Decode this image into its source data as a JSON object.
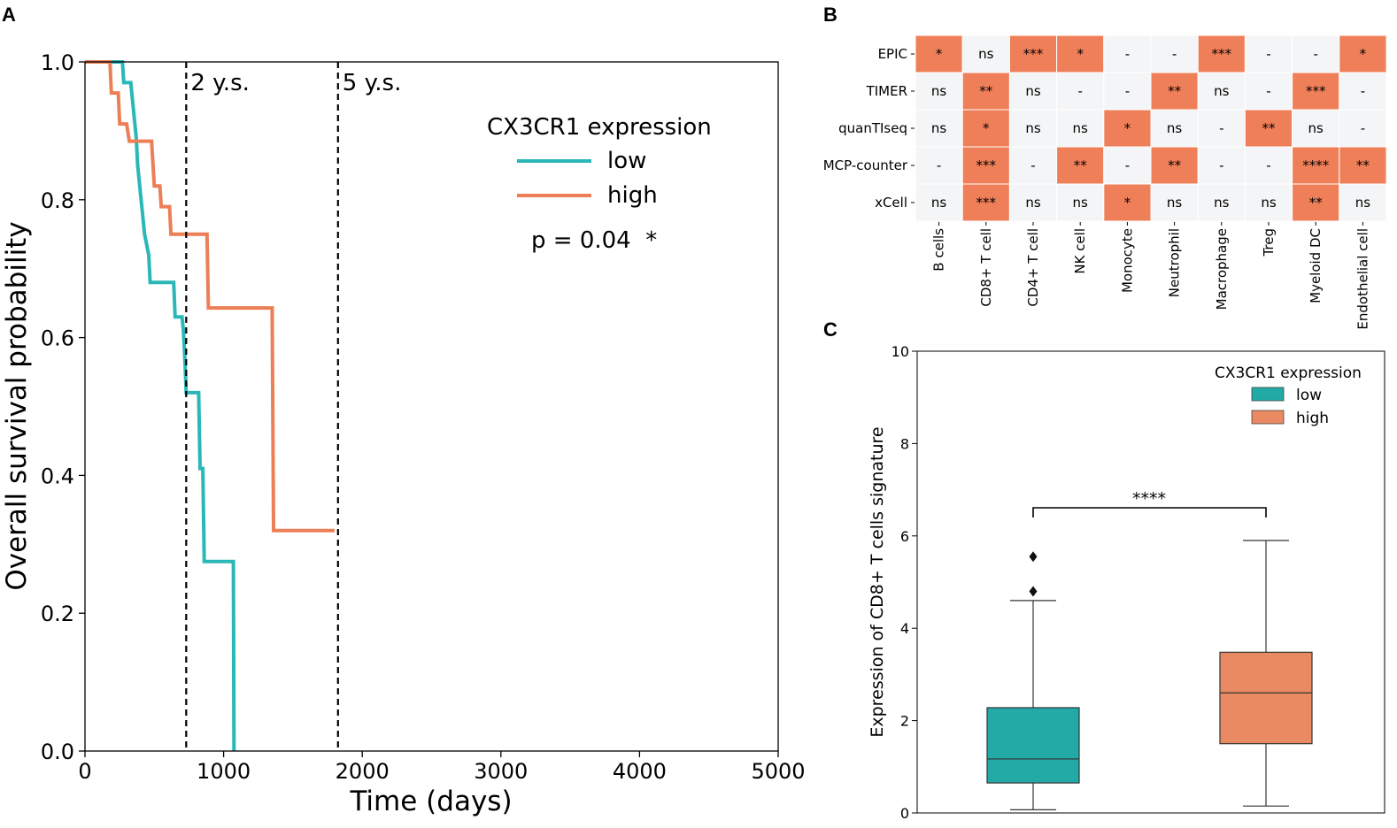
{
  "panels": {
    "a": "A",
    "b": "B",
    "c": "C"
  },
  "chart_data": [
    {
      "type": "line",
      "panel": "A",
      "xlabel": "Time (days)",
      "ylabel": "Overall survival probability",
      "xlim": [
        0,
        5000
      ],
      "ylim": [
        0,
        1.0
      ],
      "xticks": [
        "0",
        "1000",
        "2000",
        "3000",
        "4000",
        "5000"
      ],
      "yticks": [
        "0.0",
        "0.2",
        "0.4",
        "0.6",
        "0.8",
        "1.0"
      ],
      "vlines": [
        {
          "x": 730,
          "label": "2 y.s."
        },
        {
          "x": 1825,
          "label": "5 y.s."
        }
      ],
      "legend_title": "CX3CR1 expression",
      "pvalue_text": "p = 0.04  *",
      "series": [
        {
          "name": "low",
          "color": "#2ab7b7",
          "steps": [
            [
              0,
              1.0
            ],
            [
              270,
              1.0
            ],
            [
              280,
              0.97
            ],
            [
              330,
              0.97
            ],
            [
              350,
              0.93
            ],
            [
              370,
              0.89
            ],
            [
              380,
              0.85
            ],
            [
              400,
              0.81
            ],
            [
              410,
              0.79
            ],
            [
              430,
              0.75
            ],
            [
              460,
              0.72
            ],
            [
              470,
              0.68
            ],
            [
              640,
              0.68
            ],
            [
              650,
              0.63
            ],
            [
              700,
              0.63
            ],
            [
              710,
              0.61
            ],
            [
              720,
              0.57
            ],
            [
              730,
              0.52
            ],
            [
              820,
              0.52
            ],
            [
              830,
              0.41
            ],
            [
              850,
              0.41
            ],
            [
              860,
              0.275
            ],
            [
              1070,
              0.275
            ],
            [
              1075,
              0.0
            ]
          ]
        },
        {
          "name": "high",
          "color": "#ec7f56",
          "steps": [
            [
              0,
              1.0
            ],
            [
              180,
              1.0
            ],
            [
              190,
              0.955
            ],
            [
              240,
              0.955
            ],
            [
              250,
              0.91
            ],
            [
              300,
              0.91
            ],
            [
              320,
              0.885
            ],
            [
              480,
              0.885
            ],
            [
              500,
              0.82
            ],
            [
              540,
              0.82
            ],
            [
              550,
              0.79
            ],
            [
              610,
              0.79
            ],
            [
              620,
              0.75
            ],
            [
              880,
              0.75
            ],
            [
              890,
              0.643
            ],
            [
              1350,
              0.643
            ],
            [
              1360,
              0.32
            ],
            [
              1800,
              0.32
            ]
          ]
        }
      ]
    },
    {
      "type": "heatmap",
      "panel": "B",
      "rows": [
        "EPIC",
        "TIMER",
        "quanTIseq",
        "MCP-counter",
        "xCell"
      ],
      "columns": [
        "B cells",
        "CD8+ T cell",
        "CD4+ T cell",
        "NK cell",
        "Monocyte",
        "Neutrophil",
        "Macrophage",
        "Treg",
        "Myeloid DC",
        "Endothelial cell"
      ],
      "cells": [
        [
          "*",
          "ns",
          "***",
          "*",
          "-",
          "-",
          "***",
          "-",
          "-",
          "*"
        ],
        [
          "ns",
          "**",
          "ns",
          "-",
          "-",
          "**",
          "ns",
          "-",
          "***",
          "-"
        ],
        [
          "ns",
          "*",
          "ns",
          "ns",
          "*",
          "ns",
          "-",
          "**",
          "ns",
          "-"
        ],
        [
          "-",
          "***",
          "-",
          "**",
          "-",
          "**",
          "-",
          "-",
          "****",
          "**"
        ],
        [
          "ns",
          "***",
          "ns",
          "ns",
          "*",
          "ns",
          "ns",
          "ns",
          "**",
          "ns"
        ]
      ],
      "significant_color": "#ef7f58",
      "nonsignificant_color": "#f4f5f6"
    },
    {
      "type": "box",
      "panel": "C",
      "ylabel": "Expression of CD8+ T cells signature",
      "ylim": [
        0,
        10
      ],
      "yticks": [
        "0",
        "2",
        "4",
        "6",
        "8",
        "10"
      ],
      "legend_title": "CX3CR1 expression",
      "significance": "****",
      "groups": [
        {
          "name": "low",
          "color": "#21aaa6",
          "whisker_low": 0.07,
          "q1": 0.65,
          "median": 1.17,
          "q3": 2.28,
          "whisker_high": 4.6,
          "outliers": [
            4.8,
            5.55
          ]
        },
        {
          "name": "high",
          "color": "#ea8a62",
          "whisker_low": 0.15,
          "q1": 1.5,
          "median": 2.6,
          "q3": 3.48,
          "whisker_high": 5.9,
          "outliers": []
        }
      ]
    }
  ]
}
